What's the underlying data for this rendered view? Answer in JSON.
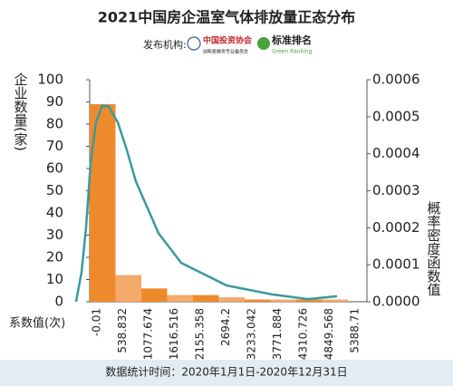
{
  "chart_data": {
    "type": "histogram",
    "title": "2021中国房企温室气体排放量正态分布",
    "publisher": {
      "label": "发布机构:",
      "org1": "中国投资协会",
      "org1_sub": "创新投融资专业委员会",
      "org2": "标准排名",
      "org2_sub": "Green Ranking"
    },
    "y_label": "企业数量(家)",
    "y2_label": "概率密度函数值",
    "x_label": "系数值(次)",
    "footer": "数据统计时间：2020年1月1日-2020年12月31日",
    "bins": [
      -0.01,
      538.832,
      1077.674,
      1616.516,
      2155.358,
      2694.2,
      3233.042,
      3771.884,
      4310.726,
      4849.568,
      5388.71
    ],
    "values": [
      89,
      12,
      6,
      3,
      3,
      2,
      1,
      1,
      1,
      1
    ],
    "colors": [
      "#ef8a2c",
      "#f4aa68",
      "#ef8a2c",
      "#f4aa68",
      "#ef8a2c",
      "#f4aa68",
      "#ef8a2c",
      "#f4aa68",
      "#ef8a2c",
      "#f4aa68"
    ],
    "xlim": [
      -0.01,
      5785
    ],
    "ylim": [
      0,
      100
    ],
    "yticks": [
      0,
      10,
      20,
      30,
      40,
      50,
      60,
      70,
      80,
      90,
      100
    ],
    "y2lim": [
      0,
      0.0006
    ],
    "y2ticks": [
      {
        "value": 0,
        "label": "0.0000"
      },
      {
        "value": 0.0001,
        "label": "0.0001"
      },
      {
        "value": 0.0002,
        "label": "0.0002"
      },
      {
        "value": 0.0003,
        "label": "0.0003"
      },
      {
        "value": 0.0004,
        "label": "0.0004"
      },
      {
        "value": 0.0005,
        "label": "0.0005"
      },
      {
        "value": 0.0006,
        "label": "0.0006"
      }
    ],
    "series": [
      {
        "type": "line",
        "axis": "y2",
        "color": "#3a9a9a",
        "x": [
          -284,
          -170,
          -76,
          19,
          132,
          265,
          397,
          586,
          775,
          964,
          1437,
          1910,
          2855,
          3800,
          4557,
          5162
        ],
        "values": [
          0,
          8e-05,
          0.0002,
          0.000375,
          0.000485,
          0.00053,
          0.000527,
          0.000485,
          0.00041,
          0.000325,
          0.000185,
          0.000105,
          4.4e-05,
          2e-05,
          7e-06,
          1.5e-05
        ]
      }
    ]
  }
}
